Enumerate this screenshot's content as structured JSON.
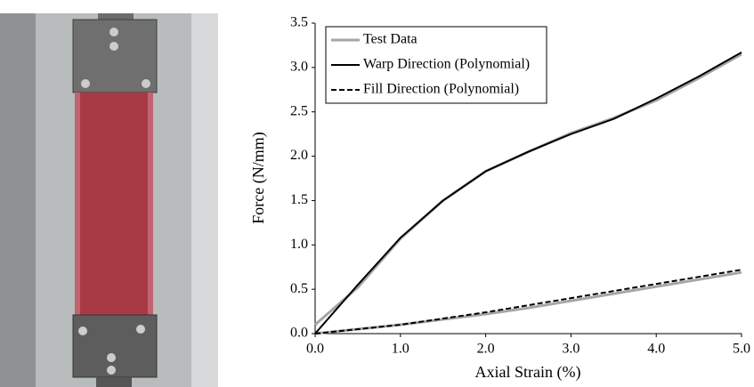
{
  "chart_data": {
    "type": "line",
    "x": [
      0,
      0.5,
      1,
      1.5,
      2,
      2.5,
      3,
      3.5,
      4,
      4.5,
      5
    ],
    "series": [
      {
        "name": "Test Data",
        "color": "#a6a6a6",
        "values": [
          0.1,
          0.52,
          1.07,
          1.5,
          1.83,
          2.05,
          2.26,
          2.43,
          2.63,
          2.88,
          3.15
        ]
      },
      {
        "color": "#a6a6a6",
        "values": [
          0,
          0.05,
          0.1,
          0.16,
          0.22,
          0.29,
          0.37,
          0.45,
          0.53,
          0.61,
          0.69
        ]
      },
      {
        "name": "Warp Direction (Polynomial)",
        "color": "#000000",
        "values": [
          0,
          0.55,
          1.08,
          1.5,
          1.83,
          2.05,
          2.25,
          2.42,
          2.65,
          2.9,
          3.17
        ]
      },
      {
        "name": "Fill Direction (Polynomial)",
        "color": "#000000",
        "dashed": true,
        "values": [
          0,
          0.05,
          0.1,
          0.17,
          0.24,
          0.32,
          0.4,
          0.48,
          0.56,
          0.64,
          0.72
        ]
      }
    ],
    "xlabel": "Axial Strain (%)",
    "ylabel": "Force (N/mm)",
    "xlim": [
      0,
      5
    ],
    "ylim": [
      0,
      3.5
    ],
    "xticks": [
      {
        "value": 0,
        "label": "0.0"
      },
      {
        "value": 1,
        "label": "1.0"
      },
      {
        "value": 2,
        "label": "2.0"
      },
      {
        "value": 3,
        "label": "3.0"
      },
      {
        "value": 4,
        "label": "4.0"
      },
      {
        "value": 5,
        "label": "5.0"
      }
    ],
    "yticks": [
      {
        "value": 0,
        "label": "0.0"
      },
      0.5,
      {
        "value": 1,
        "label": "1.0"
      },
      1.5,
      {
        "value": 2,
        "label": "2.0"
      },
      2.5,
      {
        "value": 3,
        "label": "3.0"
      },
      3.5
    ],
    "grid": false,
    "legend": "top-left"
  }
}
